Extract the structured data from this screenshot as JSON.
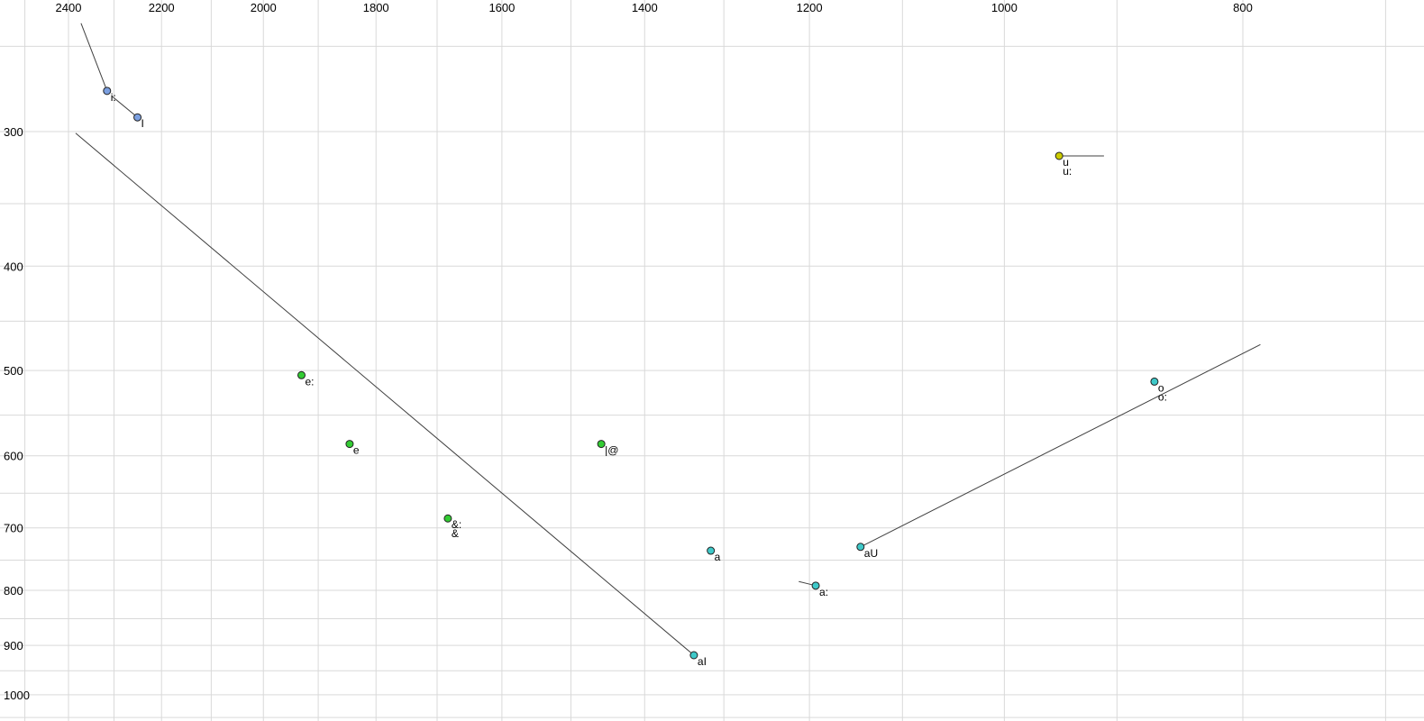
{
  "chart_data": {
    "type": "scatter",
    "title": "",
    "xlabel": "",
    "ylabel": "",
    "x_axis": {
      "ticks": [
        2400,
        2200,
        2000,
        1800,
        1600,
        1400,
        1200,
        1000,
        800
      ],
      "scale": "log",
      "reversed": true,
      "grid_step": 100,
      "grid_min": 700,
      "grid_max": 2500,
      "range": [
        2560,
        675
      ]
    },
    "y_axis": {
      "ticks": [
        300,
        400,
        500,
        600,
        700,
        800,
        900,
        1000
      ],
      "scale": "log",
      "grid_step": 50,
      "grid_min": 250,
      "grid_max": 1050,
      "range": [
        226,
        1058
      ]
    },
    "grid": true,
    "legend": "none",
    "style": {
      "background": "#ffffff",
      "grid_color": "#d9d9d9",
      "line_color": "#404040",
      "text_color": "#000000",
      "point_outline": "#222222"
    },
    "colors": {
      "blue": "#7b9fe0",
      "green": "#33cc33",
      "cyan": "#3fc9c9",
      "yellow": "#cccc00"
    },
    "points": [
      {
        "id": "i-long",
        "labels": [
          "i:"
        ],
        "f2": 2315,
        "f1": 275,
        "color": "blue"
      },
      {
        "id": "I",
        "labels": [
          "I"
        ],
        "f2": 2250,
        "f1": 291,
        "color": "blue"
      },
      {
        "id": "e-long",
        "labels": [
          "e:"
        ],
        "f2": 1930,
        "f1": 505,
        "color": "green"
      },
      {
        "id": "e",
        "labels": [
          "e"
        ],
        "f2": 1845,
        "f1": 585,
        "color": "green"
      },
      {
        "id": "schwa",
        "labels": [
          "|@"
        ],
        "f2": 1458,
        "f1": 585,
        "color": "green"
      },
      {
        "id": "ae",
        "labels": [
          "&:",
          "&"
        ],
        "f2": 1683,
        "f1": 686,
        "color": "green"
      },
      {
        "id": "a",
        "labels": [
          "a"
        ],
        "f2": 1316,
        "f1": 735,
        "color": "cyan"
      },
      {
        "id": "aU",
        "labels": [
          "aU"
        ],
        "f2": 1144,
        "f1": 729,
        "color": "cyan"
      },
      {
        "id": "a-long",
        "labels": [
          "a:"
        ],
        "f2": 1193,
        "f1": 792,
        "color": "cyan"
      },
      {
        "id": "aI",
        "labels": [
          "aI"
        ],
        "f2": 1337,
        "f1": 919,
        "color": "cyan"
      },
      {
        "id": "o",
        "labels": [
          "o",
          "o:"
        ],
        "f2": 869,
        "f1": 512,
        "color": "cyan"
      },
      {
        "id": "u",
        "labels": [
          "u",
          "u:"
        ],
        "f2": 950,
        "f1": 316,
        "color": "yellow"
      }
    ],
    "trajectories": [
      {
        "from_id": "aI",
        "to": {
          "f2": 2384,
          "f1": 301
        }
      },
      {
        "from_id": "aU",
        "to": {
          "f2": 787,
          "f1": 473
        }
      },
      {
        "from_id": "i-long",
        "to": {
          "f2": 2372,
          "f1": 238
        }
      },
      {
        "from_id": "I",
        "to": {
          "f2": 2305,
          "f1": 278
        }
      },
      {
        "from_id": "a-long",
        "to": {
          "f2": 1212,
          "f1": 785
        }
      },
      {
        "from_id": "u",
        "to": {
          "f2": 911,
          "f1": 316
        }
      }
    ]
  }
}
